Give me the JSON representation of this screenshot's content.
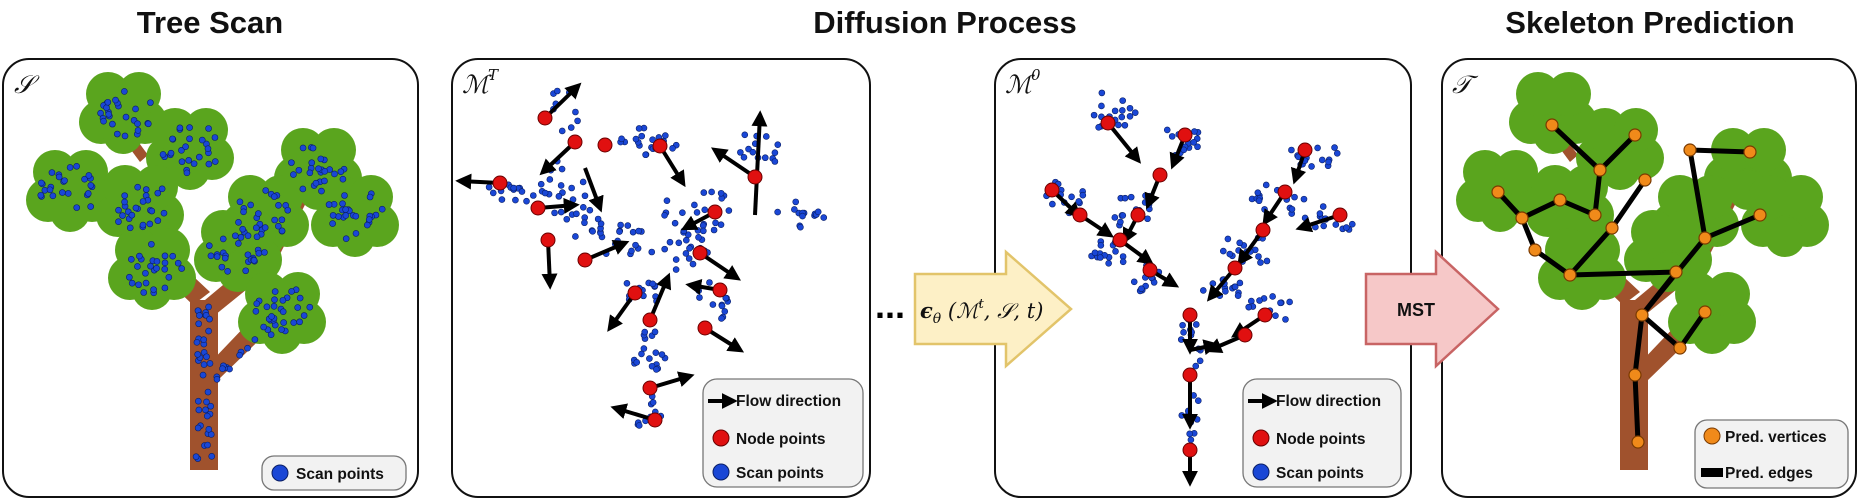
{
  "titles": {
    "tree_scan": "Tree Scan",
    "diffusion": "Diffusion Process",
    "skeleton": "Skeleton Prediction"
  },
  "panels": {
    "scan": {
      "symbol": "𝒮"
    },
    "noisy": {
      "symbol": "ℳ",
      "sup": "T"
    },
    "clean": {
      "symbol": "ℳ",
      "sup": "0"
    },
    "tree": {
      "symbol": "𝒯"
    }
  },
  "ellipsis": "...",
  "denoiser": {
    "eps": "ϵ",
    "sub": "θ",
    "args_open": " (ℳ",
    "args_sup": "t",
    "args_rest": ", 𝒮, t)"
  },
  "mst_label": "MST",
  "legends": {
    "scan": [
      "Scan points"
    ],
    "diffusion": [
      "Flow direction",
      "Node points",
      "Scan points"
    ],
    "skeleton": [
      "Pred. vertices",
      "Pred. edges"
    ]
  },
  "colors": {
    "trunk": "#a0522d",
    "foliage": "#5aa51e",
    "scan_point": "#1a47d6",
    "node_point": "#e01010",
    "vertex": "#f08a1a",
    "edge": "#000000",
    "denoiser_fill": "#fdf0c6",
    "denoiser_stroke": "#e2c46a",
    "mst_fill": "#f6c8c8",
    "mst_stroke": "#c86464"
  }
}
